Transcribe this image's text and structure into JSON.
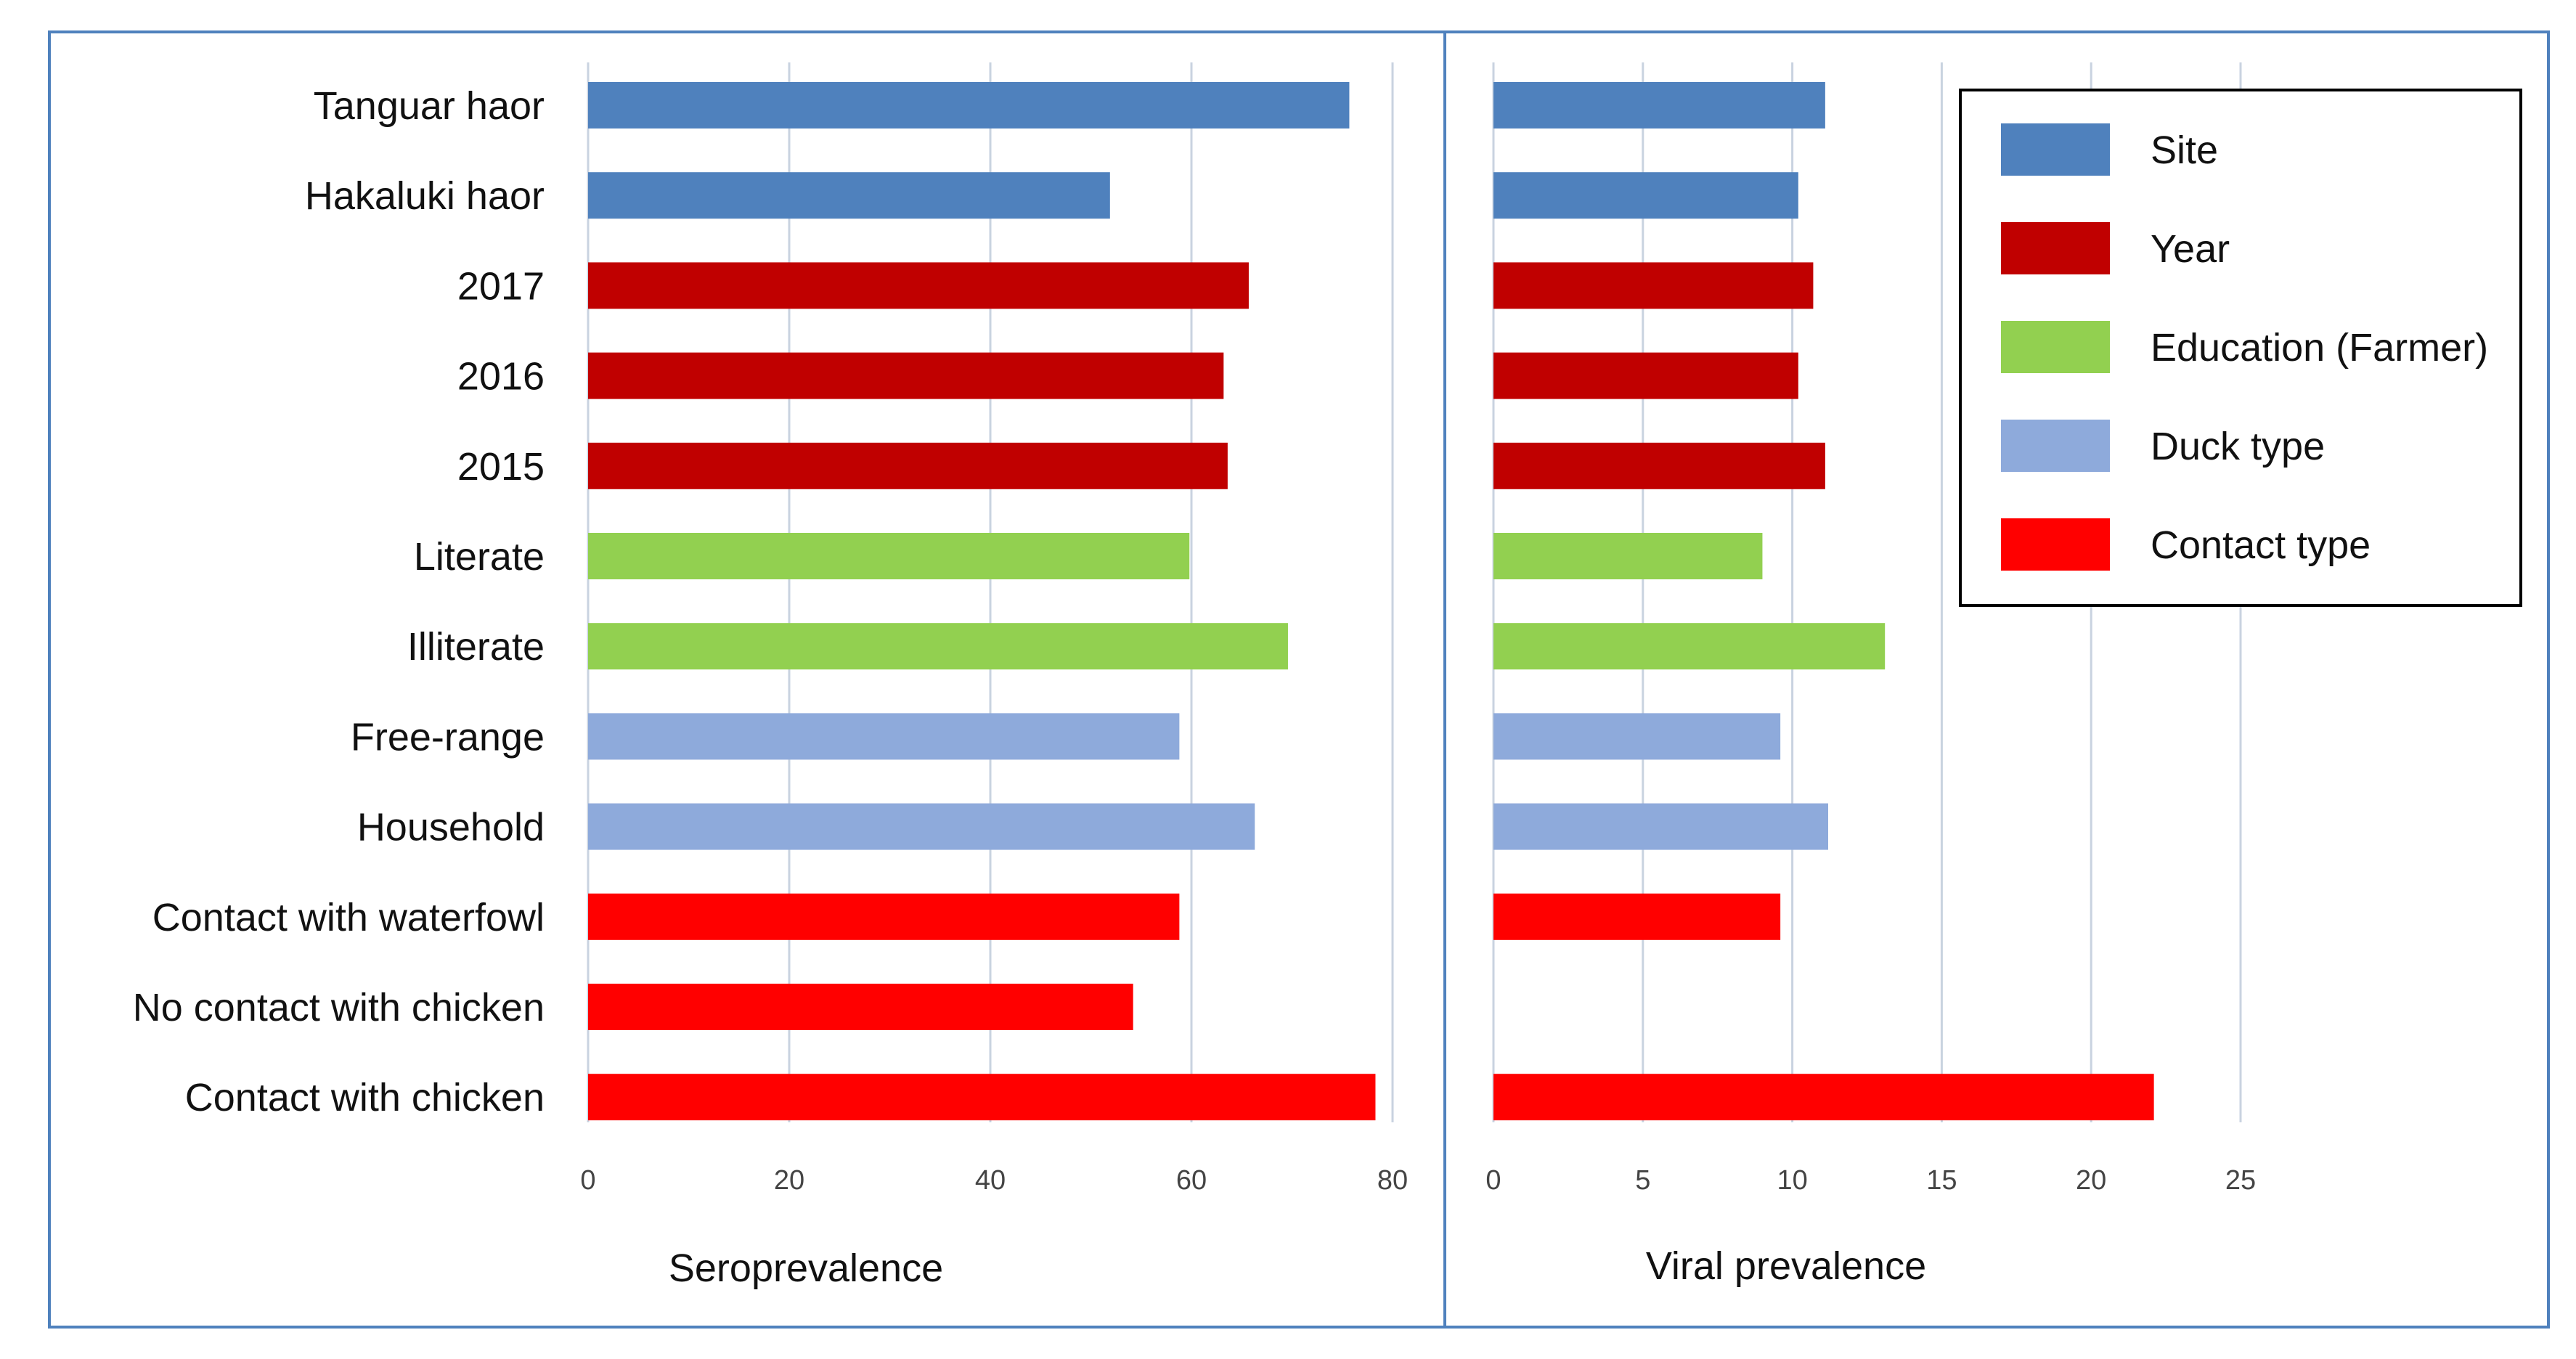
{
  "chart_data": [
    {
      "type": "bar",
      "orientation": "horizontal",
      "title": "",
      "xlabel": "Seroprevalence",
      "ylabel": "",
      "xlim": [
        0,
        80
      ],
      "xticks": [
        "0",
        "20",
        "40",
        "60",
        "80"
      ],
      "grid": true,
      "categories": [
        "Tanguar haor",
        "Hakaluki haor",
        "2017",
        "2016",
        "2015",
        "Literate",
        "Illiterate",
        "Free-range",
        "Household",
        "Contact with waterfowl",
        "No contact with chicken",
        "Contact with chicken"
      ],
      "groups": [
        "Site",
        "Site",
        "Year",
        "Year",
        "Year",
        "Education (Farmer)",
        "Education (Farmer)",
        "Duck type",
        "Duck type",
        "Contact type",
        "Contact type",
        "Contact type"
      ],
      "values": [
        75.7,
        51.9,
        65.7,
        63.2,
        63.6,
        59.8,
        69.6,
        58.8,
        66.3,
        58.8,
        54.2,
        78.3
      ]
    },
    {
      "type": "bar",
      "orientation": "horizontal",
      "title": "",
      "xlabel": "Viral prevalence",
      "ylabel": "",
      "xlim": [
        0,
        25
      ],
      "xticks": [
        "0",
        "5",
        "10",
        "15",
        "20",
        "25"
      ],
      "grid": true,
      "categories": [
        "Tanguar haor",
        "Hakaluki haor",
        "2017",
        "2016",
        "2015",
        "Literate",
        "Illiterate",
        "Free-range",
        "Household",
        "Contact with waterfowl",
        "No contact with chicken",
        "Contact with chicken"
      ],
      "groups": [
        "Site",
        "Site",
        "Year",
        "Year",
        "Year",
        "Education (Farmer)",
        "Education (Farmer)",
        "Duck type",
        "Duck type",
        "Contact type",
        "Contact type",
        "Contact type"
      ],
      "values": [
        11.1,
        10.2,
        10.7,
        10.2,
        11.1,
        9.0,
        13.1,
        9.6,
        11.2,
        9.6,
        0,
        22.1
      ]
    }
  ],
  "legend": {
    "placement": "top-right",
    "items": [
      {
        "label": "Site",
        "color": "#4f81bd"
      },
      {
        "label": "Year",
        "color": "#c00000"
      },
      {
        "label": "Education (Farmer)",
        "color": "#92d050"
      },
      {
        "label": "Duck type",
        "color": "#8eaadb"
      },
      {
        "label": "Contact type",
        "color": "#ff0000"
      }
    ]
  },
  "colors": {
    "frame": "#4f81bd",
    "grid": "#c9d3e0",
    "legend_border": "#000000"
  }
}
